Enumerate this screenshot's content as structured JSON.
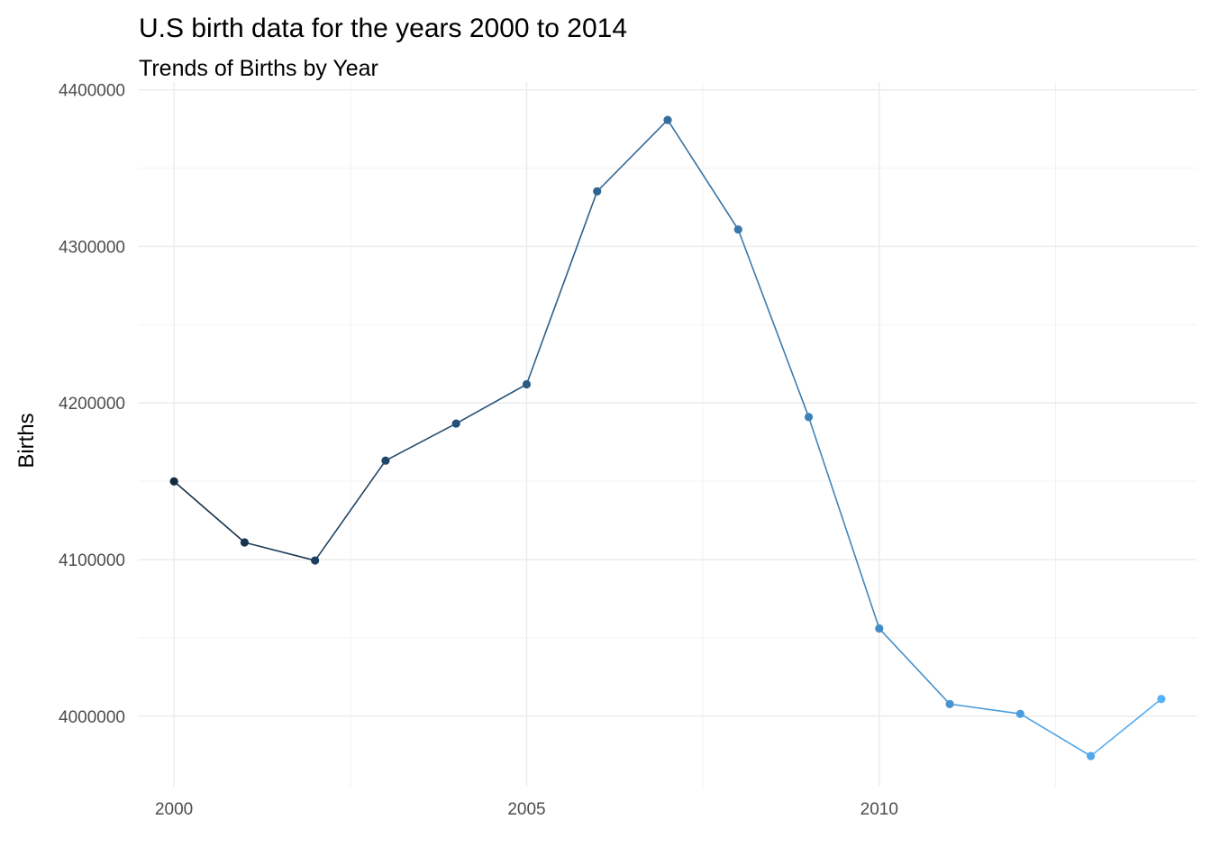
{
  "chart_data": {
    "type": "line",
    "title": "U.S birth data for the years 2000 to 2014",
    "subtitle": "Trends of Births by Year",
    "xlabel": "",
    "ylabel": "Births",
    "x": [
      2000,
      2001,
      2002,
      2003,
      2004,
      2005,
      2006,
      2007,
      2008,
      2009,
      2010,
      2011,
      2012,
      2013,
      2014
    ],
    "series": [
      {
        "values": [
          4149940,
          4110960,
          4099410,
          4163200,
          4186860,
          4211940,
          4335150,
          4380780,
          4310800,
          4190990,
          4055970,
          4007730,
          4001480,
          3974530,
          4010960
        ]
      }
    ],
    "xlim": [
      1999.5,
      2014.5
    ],
    "ylim": [
      3955000,
      4405000
    ],
    "xticks": [
      "2000",
      "2005",
      "2010"
    ],
    "yticks": [
      "4000000",
      "4100000",
      "4200000",
      "4300000",
      "4400000"
    ],
    "grid": true,
    "legend": "none",
    "color_gradient": [
      "#132b43",
      "#56b1f7"
    ]
  }
}
